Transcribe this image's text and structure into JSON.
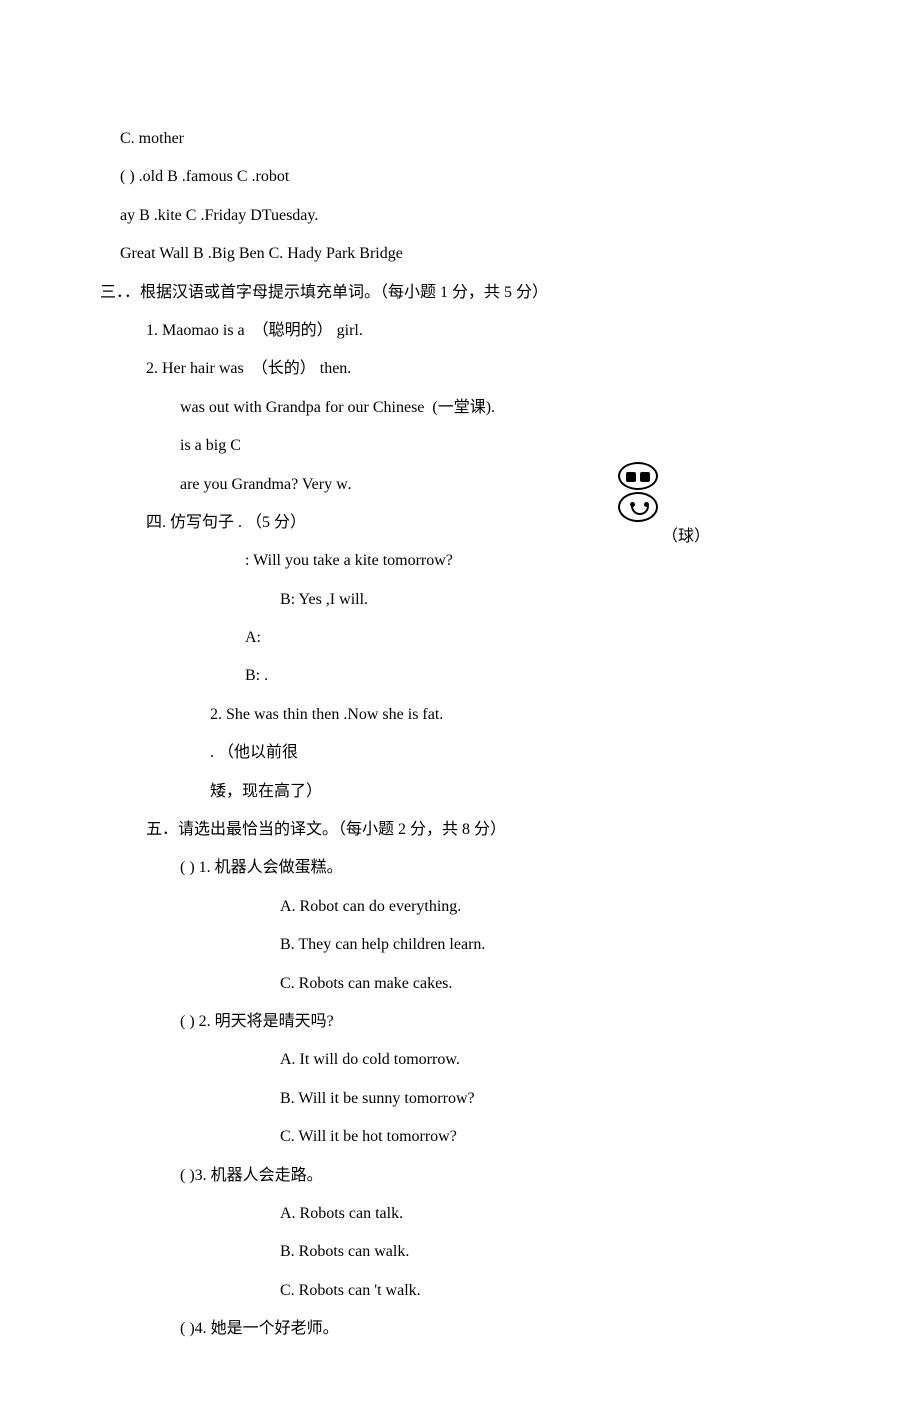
{
  "lines": {
    "l1": "C. mother",
    "l2": "( ) .old B .famous C .robot",
    "l3": "ay B .kite C .Friday DTuesday.",
    "l4": " Great Wall B .Big Ben C. Hady Park Bridge",
    "l5": "三．．根据汉语或首字母提示填充单词。（每小题 1 分，共 5 分）",
    "l6_a": "1. Maomao is a ",
    "l6_b": " （聪明的） girl.",
    "l7_a": "2. Her hair was ",
    "l7_b": " （长的） then.",
    "l8_a": "was out with Grandpa for our Chinese ",
    "l8_b": " (一堂课).",
    "l9_a": "is a big C",
    "l10_a": "are you Grandma? Very w",
    "l10_b": ".",
    "l11": "四. 仿写句子 . （5 分）",
    "l12": ": Will you take a kite tomorrow?",
    "l13": "B: Yes ,I will.",
    "l14_a": "A: ",
    "l15_a": "B: ",
    "l15_b": ".",
    "l16": "2. She was thin then .Now she is fat.",
    "l17_b": ". （他以前很",
    "l18": "矮，现在高了）",
    "l19": "五．请选出最恰当的译文。（每小题 2 分，共 8 分）",
    "l20": "(  ) 1. 机器人会做蛋糕。",
    "l21": "A. Robot can do everything.",
    "l22": "B. They can help children learn.",
    "l23": "C. Robots can make cakes.",
    "l24": "(  ) 2. 明天将是晴天吗?",
    "l25": "A. It will do cold tomorrow.",
    "l26": "B. Will it be sunny tomorrow?",
    "l27": "C. Will it be hot tomorrow?",
    "l28": "( )3. 机器人会走路。",
    "l29": "A. Robots can talk.",
    "l30": "B. Robots can walk.",
    "l31": "C. Robots can 't walk.",
    "l32": "( )4. 她是一个好老师。",
    "ball_label": "（球）"
  },
  "underlines": {
    "u_short": "         ",
    "u_med": "        ",
    "u_small": "       ",
    "u_tiny": "      ",
    "u_long": "                                        ",
    "u_long2": "                                        ",
    "u_xlong": "                                         "
  }
}
